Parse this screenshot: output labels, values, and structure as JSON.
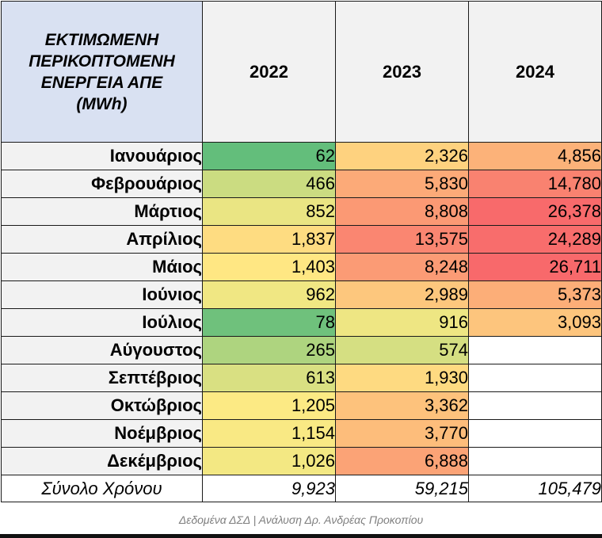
{
  "chart_data": {
    "type": "table",
    "title": "ΕΚΤΙΜΩΜΕΝΗ ΠΕΡΙΚΟΠΤΟΜΕΝΗ ΕΝΕΡΓΕΙΑ ΑΠΕ (MWh)",
    "title_lines": [
      "ΕΚΤΙΜΩΜΕΝΗ",
      "ΠΕΡΙΚΟΠΤΟΜΕΝΗ",
      "ΕΝΕΡΓΕΙΑ ΑΠΕ",
      "(MWh)"
    ],
    "columns": [
      "2022",
      "2023",
      "2024"
    ],
    "rows": [
      {
        "label": "Ιανουάριος",
        "values": [
          62,
          2326,
          4856
        ],
        "display": [
          "62",
          "2,326",
          "4,856"
        ]
      },
      {
        "label": "Φεβρουάριος",
        "values": [
          466,
          5830,
          14780
        ],
        "display": [
          "466",
          "5,830",
          "14,780"
        ]
      },
      {
        "label": "Μάρτιος",
        "values": [
          852,
          8808,
          26378
        ],
        "display": [
          "852",
          "8,808",
          "26,378"
        ]
      },
      {
        "label": "Απρίλιος",
        "values": [
          1837,
          13575,
          24289
        ],
        "display": [
          "1,837",
          "13,575",
          "24,289"
        ]
      },
      {
        "label": "Μάιος",
        "values": [
          1403,
          8248,
          26711
        ],
        "display": [
          "1,403",
          "8,248",
          "26,711"
        ]
      },
      {
        "label": "Ιούνιος",
        "values": [
          962,
          2989,
          5373
        ],
        "display": [
          "962",
          "2,989",
          "5,373"
        ]
      },
      {
        "label": "Ιούλιος",
        "values": [
          78,
          916,
          3093
        ],
        "display": [
          "78",
          "916",
          "3,093"
        ]
      },
      {
        "label": "Αύγουστος",
        "values": [
          265,
          574,
          null
        ],
        "display": [
          "265",
          "574",
          ""
        ]
      },
      {
        "label": "Σεπτέβριος",
        "values": [
          613,
          1930,
          null
        ],
        "display": [
          "613",
          "1,930",
          ""
        ]
      },
      {
        "label": "Οκτώβριος",
        "values": [
          1205,
          3362,
          null
        ],
        "display": [
          "1,205",
          "3,362",
          ""
        ]
      },
      {
        "label": "Νοέμβριος",
        "values": [
          1154,
          3770,
          null
        ],
        "display": [
          "1,154",
          "3,770",
          ""
        ]
      },
      {
        "label": "Δεκέμβριος",
        "values": [
          1026,
          6888,
          null
        ],
        "display": [
          "1,026",
          "6,888",
          ""
        ]
      }
    ],
    "total": {
      "label": "Σύνολο Χρόνου",
      "values": [
        9923,
        59215,
        105479
      ],
      "display": [
        "9,923",
        "59,215",
        "105,479"
      ]
    },
    "color_scale": {
      "low": "#63be7b",
      "mid": "#ffeb84",
      "high": "#f8696b",
      "min": 62,
      "max": 26711
    }
  },
  "source_note": "Δεδομένα ΔΣΔ | Ανάλυση Δρ. Ανδρέας Προκοπίου"
}
